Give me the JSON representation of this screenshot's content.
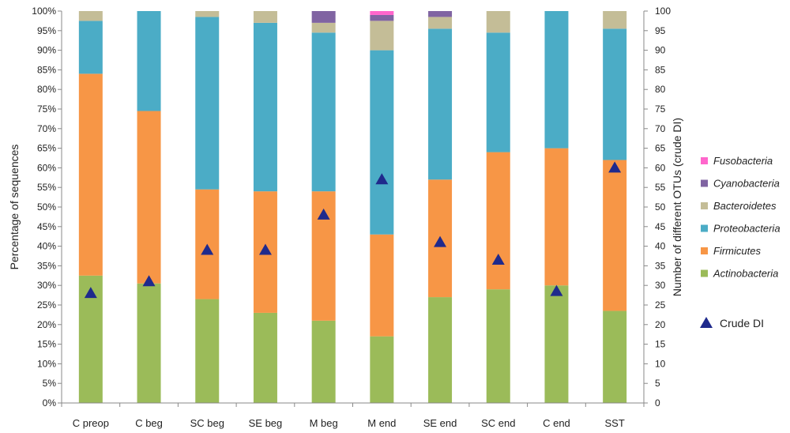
{
  "chart_data": {
    "type": "bar",
    "stacked": true,
    "categories": [
      "C preop",
      "C beg",
      "SC beg",
      "SE beg",
      "M beg",
      "M end",
      "SE end",
      "SC end",
      "C end",
      "SST"
    ],
    "series": [
      {
        "name": "Actinobacteria",
        "color": "#9BBB59",
        "values": [
          32.5,
          30.5,
          26.5,
          23,
          21,
          17,
          27,
          29,
          30,
          23.5
        ]
      },
      {
        "name": "Firmicutes",
        "color": "#F79646",
        "values": [
          51.5,
          44,
          28,
          31,
          33,
          26,
          30,
          35,
          35,
          38.5
        ]
      },
      {
        "name": "Proteobacteria",
        "color": "#4BACC6",
        "values": [
          13.5,
          25.5,
          44,
          43,
          40.5,
          47,
          38.5,
          30.5,
          35,
          33.5
        ]
      },
      {
        "name": "Bacteroidetes",
        "color": "#C4BD97",
        "values": [
          2.5,
          0,
          1.5,
          3,
          2.5,
          7.5,
          3,
          5.5,
          0,
          4.5
        ]
      },
      {
        "name": "Cyanobacteria",
        "color": "#8064A2",
        "values": [
          0,
          0,
          0,
          0,
          3,
          1.5,
          1.5,
          0,
          0,
          0
        ]
      },
      {
        "name": "Fusobacteria",
        "color": "#FF66CC",
        "values": [
          0,
          0,
          0,
          0,
          0,
          1,
          0,
          0,
          0,
          0
        ]
      }
    ],
    "crude_di": {
      "name": "Crude DI",
      "color": "#1F2A8C",
      "values": [
        28,
        31,
        39,
        39,
        48,
        57,
        41,
        36.5,
        28.5,
        60
      ]
    },
    "ylabel": "Percentage of sequences",
    "y2label": "Number of different OTUs (crude DI)",
    "ylim": [
      0,
      100
    ],
    "y2lim": [
      0,
      100
    ],
    "yticks": [
      "0%",
      "5%",
      "10%",
      "15%",
      "20%",
      "25%",
      "30%",
      "35%",
      "40%",
      "45%",
      "50%",
      "55%",
      "60%",
      "65%",
      "70%",
      "75%",
      "80%",
      "85%",
      "90%",
      "95%",
      "100%"
    ],
    "y2ticks": [
      "0",
      "5",
      "10",
      "15",
      "20",
      "25",
      "30",
      "35",
      "40",
      "45",
      "50",
      "55",
      "60",
      "65",
      "70",
      "75",
      "80",
      "85",
      "90",
      "95",
      "100"
    ],
    "legend_order": [
      "Fusobacteria",
      "Cyanobacteria",
      "Bacteroidetes",
      "Proteobacteria",
      "Firmicutes",
      "Actinobacteria"
    ],
    "legend_position": "right",
    "grid": false
  }
}
